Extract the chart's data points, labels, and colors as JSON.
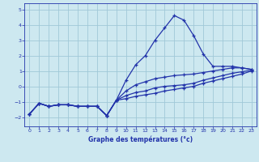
{
  "title": "Graphe des températures (°c)",
  "background_color": "#cde8f0",
  "grid_color": "#a0c8d8",
  "line_color": "#2233aa",
  "xlim": [
    -0.5,
    23.5
  ],
  "ylim": [
    -2.6,
    5.4
  ],
  "yticks": [
    -2,
    -1,
    0,
    1,
    2,
    3,
    4,
    5
  ],
  "xticks": [
    0,
    1,
    2,
    3,
    4,
    5,
    6,
    7,
    8,
    9,
    10,
    11,
    12,
    13,
    14,
    15,
    16,
    17,
    18,
    19,
    20,
    21,
    22,
    23
  ],
  "line1_x": [
    0,
    1,
    2,
    3,
    4,
    5,
    6,
    7,
    8,
    9,
    10,
    11,
    12,
    13,
    14,
    15,
    16,
    17,
    18,
    19,
    20,
    21,
    22,
    23
  ],
  "line1_y": [
    -1.8,
    -1.1,
    -1.3,
    -1.2,
    -1.2,
    -1.3,
    -1.3,
    -1.3,
    -1.9,
    -0.9,
    0.4,
    1.4,
    2.0,
    3.0,
    3.8,
    4.6,
    4.3,
    3.3,
    2.1,
    1.3,
    1.3,
    1.3,
    1.2,
    1.1
  ],
  "line2_x": [
    0,
    1,
    2,
    3,
    4,
    5,
    6,
    7,
    8,
    9,
    10,
    11,
    12,
    13,
    14,
    15,
    16,
    17,
    18,
    19,
    20,
    21,
    22,
    23
  ],
  "line2_y": [
    -1.8,
    -1.1,
    -1.3,
    -1.2,
    -1.2,
    -1.3,
    -1.3,
    -1.3,
    -1.9,
    -0.9,
    -0.3,
    0.1,
    0.3,
    0.5,
    0.6,
    0.7,
    0.75,
    0.8,
    0.9,
    1.0,
    1.1,
    1.2,
    1.2,
    1.1
  ],
  "line3_x": [
    0,
    1,
    2,
    3,
    4,
    5,
    6,
    7,
    8,
    9,
    10,
    11,
    12,
    13,
    14,
    15,
    16,
    17,
    18,
    19,
    20,
    21,
    22,
    23
  ],
  "line3_y": [
    -1.8,
    -1.1,
    -1.3,
    -1.2,
    -1.2,
    -1.3,
    -1.3,
    -1.3,
    -1.9,
    -0.9,
    -0.6,
    -0.4,
    -0.3,
    -0.1,
    0.0,
    0.05,
    0.1,
    0.2,
    0.4,
    0.55,
    0.7,
    0.85,
    0.95,
    1.05
  ],
  "line4_x": [
    0,
    1,
    2,
    3,
    4,
    5,
    6,
    7,
    8,
    9,
    10,
    11,
    12,
    13,
    14,
    15,
    16,
    17,
    18,
    19,
    20,
    21,
    22,
    23
  ],
  "line4_y": [
    -1.8,
    -1.1,
    -1.3,
    -1.2,
    -1.2,
    -1.3,
    -1.3,
    -1.3,
    -1.9,
    -0.9,
    -0.8,
    -0.65,
    -0.55,
    -0.45,
    -0.3,
    -0.2,
    -0.1,
    0.0,
    0.2,
    0.35,
    0.5,
    0.65,
    0.8,
    1.0
  ]
}
